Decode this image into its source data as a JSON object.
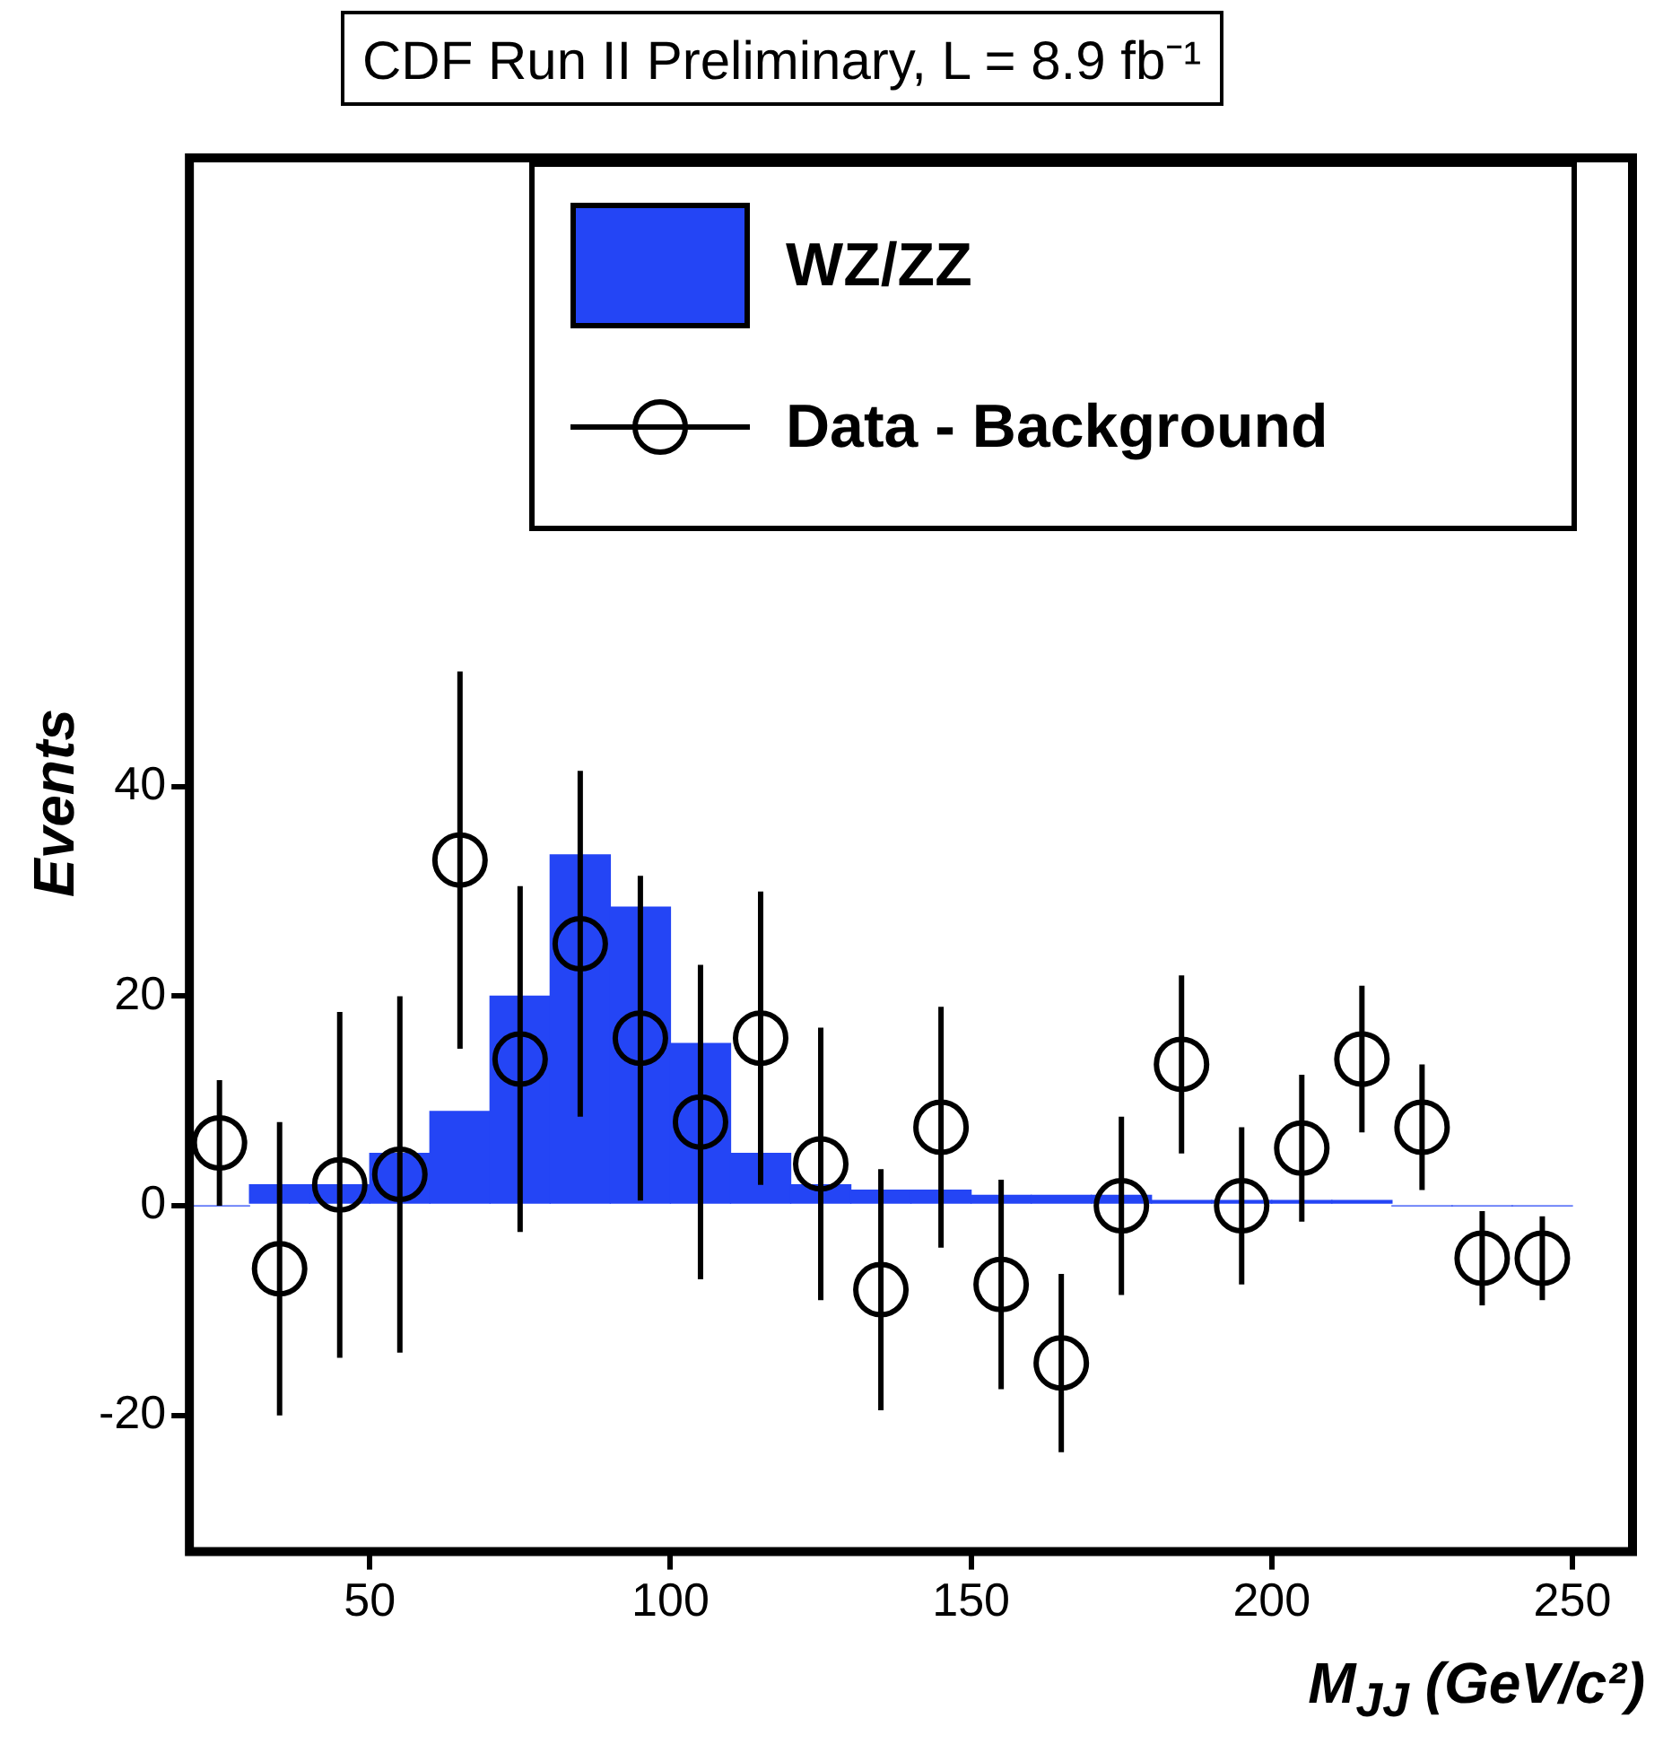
{
  "chart_data": {
    "type": "histogram",
    "title": "CDF Run II Preliminary, L = 8.9 fb⁻¹",
    "xlabel": "M$_{JJ}$ (GeV/c²)",
    "ylabel": "Events",
    "bins": [
      20,
      30,
      40,
      50,
      60,
      70,
      80,
      90,
      100,
      110,
      120,
      130,
      140,
      150,
      160,
      170,
      180,
      190,
      200,
      210,
      220,
      230,
      240,
      250
    ],
    "series": [
      {
        "name": "WZ/ZZ",
        "color": "#2445f5",
        "values": [
          0,
          2,
          2,
          5,
          9,
          20,
          33.5,
          28.5,
          15.5,
          5,
          2,
          1.5,
          1.5,
          1,
          1,
          1,
          0.5,
          0.5,
          0.5,
          0.5,
          0,
          0,
          0
        ]
      },
      {
        "name": "Data - Background",
        "type": "scatter",
        "color": "#000000",
        "marker": "circle",
        "x": [
          25,
          35,
          45,
          55,
          65,
          75,
          85,
          95,
          105,
          115,
          125,
          135,
          145,
          155,
          165,
          175,
          185,
          195,
          205,
          215,
          225,
          235,
          245
        ],
        "values": [
          6,
          -6,
          2,
          3,
          33,
          14,
          25,
          16,
          8,
          16,
          4,
          -8,
          7.5,
          -7.5,
          -15,
          0,
          13.5,
          0,
          5.5,
          14,
          7.5,
          -5,
          -5
        ],
        "errors": [
          6,
          14,
          16.5,
          17,
          18,
          16.5,
          16.5,
          15.5,
          15,
          14,
          13,
          11.5,
          11.5,
          10,
          8.5,
          8.5,
          8.5,
          7.5,
          7,
          7,
          6,
          4.5,
          4
        ]
      }
    ],
    "xlim": [
      20,
      260
    ],
    "xticks": [
      50,
      100,
      150,
      200,
      250
    ],
    "ylim": [
      -33,
      100
    ],
    "yticks": [
      -20,
      0,
      20,
      40
    ],
    "grid": false,
    "legend": "top"
  }
}
